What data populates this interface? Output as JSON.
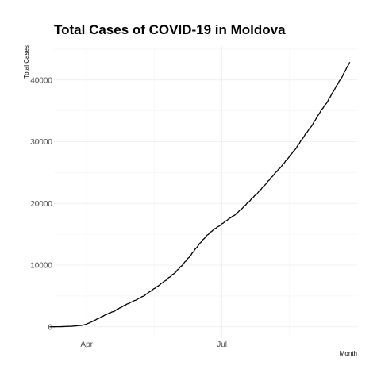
{
  "chart_data": {
    "type": "line",
    "title": "Total Cases of COVID-19 in Moldova",
    "xlabel": "Month",
    "ylabel": "Total Cases",
    "x_tick_labels": [
      {
        "label": "Apr",
        "date": "2020-04-01"
      },
      {
        "label": "Jul",
        "date": "2020-07-01"
      }
    ],
    "y_ticks": [
      0,
      10000,
      20000,
      30000,
      40000
    ],
    "xlim": [
      "2020-03-10",
      "2020-09-30"
    ],
    "ylim": [
      -1700,
      45500
    ],
    "grid": true,
    "series": [
      {
        "x": [
          "2020-03-07",
          "2020-03-15",
          "2020-03-22",
          "2020-03-29",
          "2020-04-01",
          "2020-04-05",
          "2020-04-10",
          "2020-04-15",
          "2020-04-20",
          "2020-04-25",
          "2020-04-30",
          "2020-05-05",
          "2020-05-10",
          "2020-05-15",
          "2020-05-20",
          "2020-05-25",
          "2020-05-31",
          "2020-06-05",
          "2020-06-10",
          "2020-06-15",
          "2020-06-20",
          "2020-06-25",
          "2020-06-30",
          "2020-07-05",
          "2020-07-10",
          "2020-07-15",
          "2020-07-20",
          "2020-07-25",
          "2020-07-31",
          "2020-08-05",
          "2020-08-10",
          "2020-08-15",
          "2020-08-20",
          "2020-08-25",
          "2020-08-31",
          "2020-09-05",
          "2020-09-10",
          "2020-09-15",
          "2020-09-20",
          "2020-09-25"
        ],
        "y": [
          3,
          30,
          100,
          250,
          450,
          900,
          1500,
          2100,
          2600,
          3300,
          3900,
          4450,
          5100,
          5950,
          6800,
          7700,
          8900,
          10200,
          11600,
          13200,
          14600,
          15700,
          16500,
          17400,
          18200,
          19300,
          20500,
          21700,
          23300,
          24700,
          26000,
          27500,
          29000,
          30800,
          32800,
          34800,
          36500,
          38600,
          40600,
          42900
        ]
      }
    ]
  }
}
